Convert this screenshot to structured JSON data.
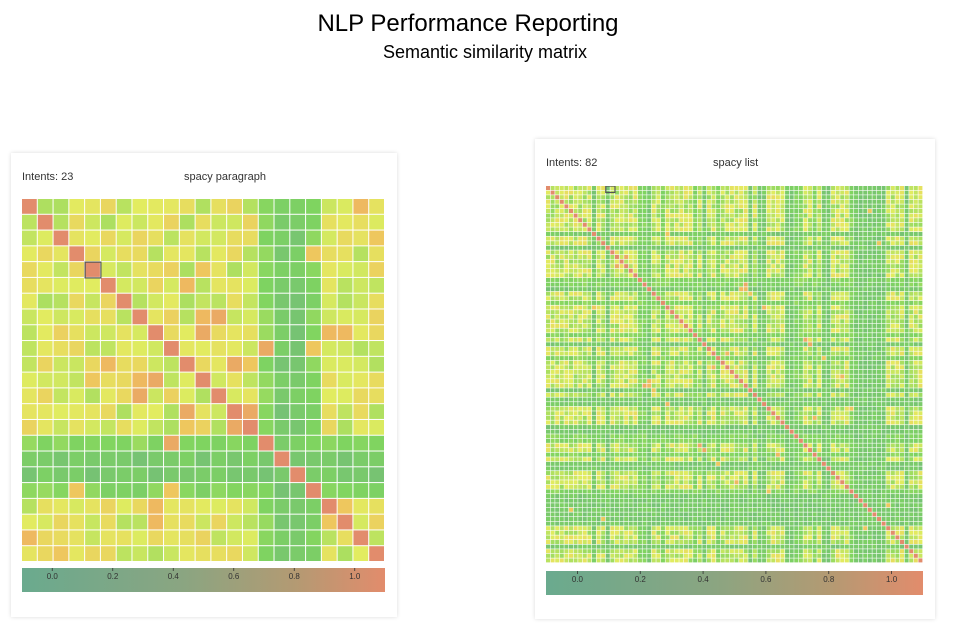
{
  "header": {
    "title": "NLP Performance Reporting",
    "subtitle": "Semantic similarity matrix"
  },
  "colorscale": {
    "low": "#6aaa8e",
    "mid_low": "#7fd460",
    "mid": "#e2ec60",
    "mid_high": "#f0c25e",
    "high": "#e28c6c",
    "gridline": "#ffffff"
  },
  "chart_data": [
    {
      "type": "heatmap",
      "intents_label": "Intents: 23",
      "model": "spacy paragraph",
      "size": 23,
      "zlim": [
        -0.1,
        1.1
      ],
      "colorbar_ticks": [
        "0.0",
        "0.2",
        "0.4",
        "0.6",
        "0.8",
        "1.0"
      ],
      "colorbar_tick_values": [
        0.0,
        0.2,
        0.4,
        0.6,
        0.8,
        1.0
      ],
      "dark_columns": [
        16,
        17
      ],
      "light_columns": [
        15
      ],
      "dark_rows": [
        16,
        17,
        18
      ],
      "base_value": 0.55,
      "bright_cells": [
        [
          8,
          11,
          0.8
        ],
        [
          10,
          13,
          0.8
        ],
        [
          12,
          7,
          0.8
        ],
        [
          13,
          14,
          0.8
        ],
        [
          15,
          9,
          0.8
        ],
        [
          5,
          10,
          0.75
        ],
        [
          8,
          20,
          0.75
        ],
        [
          11,
          7,
          0.75
        ],
        [
          18,
          3,
          0.7
        ],
        [
          19,
          8,
          0.75
        ],
        [
          21,
          0,
          0.75
        ],
        [
          2,
          22,
          0.7
        ],
        [
          4,
          11,
          0.7
        ],
        [
          14,
          10,
          0.7
        ],
        [
          19,
          20,
          0.7
        ],
        [
          9,
          18,
          0.7
        ]
      ],
      "highlighted_cell": [
        4,
        4
      ]
    },
    {
      "type": "heatmap",
      "intents_label": "Intents: 82",
      "model": "spacy list",
      "size": 82,
      "zlim": [
        -0.1,
        1.1
      ],
      "colorbar_ticks": [
        "0.0",
        "0.2",
        "0.4",
        "0.6",
        "0.8",
        "1.0"
      ],
      "colorbar_tick_values": [
        0.0,
        0.2,
        0.4,
        0.6,
        0.8,
        1.0
      ],
      "dark_columns": [
        10,
        13,
        22,
        34,
        44,
        46,
        47,
        52,
        53,
        60,
        61,
        67,
        68,
        69,
        70,
        71,
        72,
        73,
        78
      ],
      "light_columns": [],
      "dark_rows": [
        20,
        21,
        25,
        32,
        37,
        52,
        53,
        54,
        55,
        58,
        66
      ],
      "base_value": 0.5,
      "bright_cells": [
        [
          15,
          17,
          0.8
        ],
        [
          16,
          16,
          0.8
        ],
        [
          21,
          43,
          0.8
        ],
        [
          22,
          42,
          0.75
        ],
        [
          26,
          47,
          0.75
        ],
        [
          33,
          56,
          0.8
        ],
        [
          34,
          57,
          0.8
        ],
        [
          36,
          39,
          0.75
        ],
        [
          43,
          22,
          0.75
        ],
        [
          44,
          23,
          0.7
        ],
        [
          41,
          64,
          0.75
        ],
        [
          48,
          66,
          0.7
        ],
        [
          50,
          58,
          0.75
        ],
        [
          60,
          37,
          0.7
        ],
        [
          69,
          74,
          0.7
        ],
        [
          10,
          26,
          0.7
        ],
        [
          72,
          12,
          0.7
        ],
        [
          5,
          70,
          0.7
        ]
      ],
      "highlighted_cell": [
        0,
        13
      ]
    }
  ]
}
